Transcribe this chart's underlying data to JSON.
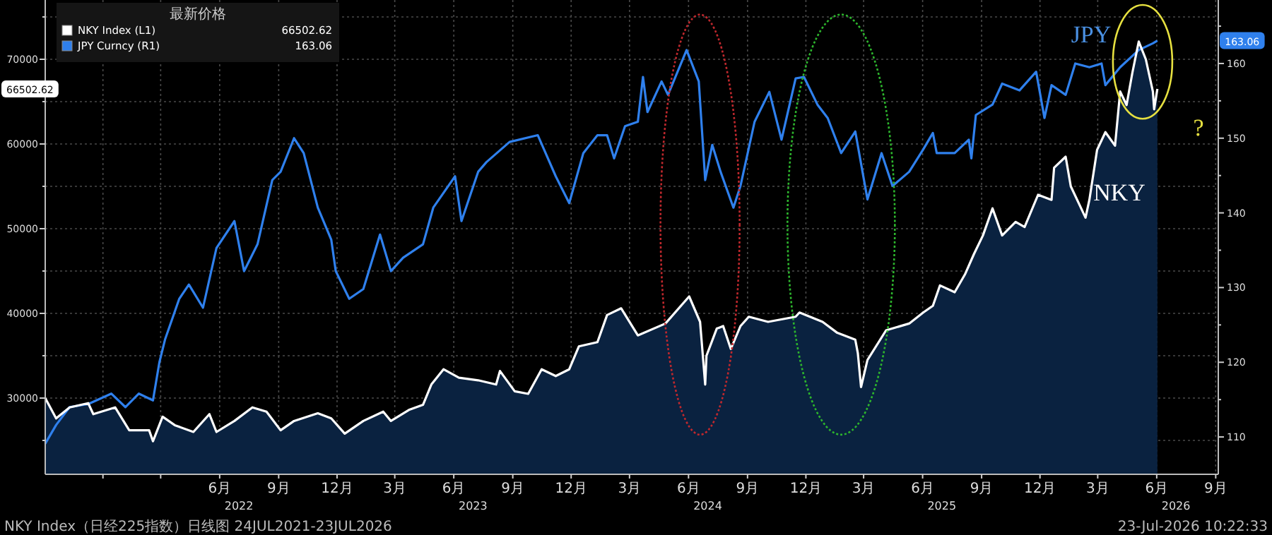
{
  "chart_data": {
    "type": "line",
    "legend_title": "最新价格",
    "legend": "top left",
    "grid": true,
    "xlim": [
      "2021-09-02",
      "2026-09-05"
    ],
    "ylim": [
      21000,
      77000
    ],
    "y2lim": [
      105,
      168.5
    ],
    "xticks": [
      {
        "value": "2021-12-01",
        "label": null
      },
      {
        "value": "2022-03-01",
        "label": null
      },
      {
        "value": "2022-06-01",
        "label": "6月"
      },
      {
        "value": "2022-09-01",
        "label": "9月"
      },
      {
        "value": "2022-12-01",
        "label": "12月"
      },
      {
        "value": "2023-03-01",
        "label": "3月"
      },
      {
        "value": "2023-06-01",
        "label": "6月"
      },
      {
        "value": "2023-09-01",
        "label": "9月"
      },
      {
        "value": "2023-12-01",
        "label": "12月"
      },
      {
        "value": "2024-03-01",
        "label": "3月"
      },
      {
        "value": "2024-06-01",
        "label": "6月"
      },
      {
        "value": "2024-09-01",
        "label": "9月"
      },
      {
        "value": "2024-12-01",
        "label": "12月"
      },
      {
        "value": "2025-03-01",
        "label": "3月"
      },
      {
        "value": "2025-06-01",
        "label": "6月"
      },
      {
        "value": "2025-09-01",
        "label": "9月"
      },
      {
        "value": "2025-12-01",
        "label": "12月"
      },
      {
        "value": "2026-03-01",
        "label": "3月"
      },
      {
        "value": "2026-06-01",
        "label": "6月"
      },
      {
        "value": "2026-09-01",
        "label": "9月"
      }
    ],
    "x2lim": [
      "2021-09-02",
      "2026-09-05"
    ],
    "x2ticks": [
      {
        "value": "2022-07-01",
        "label": "2022"
      },
      {
        "value": "2023-07-01",
        "label": "2023"
      },
      {
        "value": "2024-07-01",
        "label": "2024"
      },
      {
        "value": "2025-07-01",
        "label": "2025"
      },
      {
        "value": "2026-07-01",
        "label": "2026"
      }
    ],
    "yticks": [
      {
        "value": 25000,
        "label": null
      },
      30000,
      {
        "value": 35000,
        "label": null
      },
      40000,
      {
        "value": 45000,
        "label": null
      },
      50000,
      {
        "value": 55000,
        "label": null
      },
      60000,
      {
        "value": 65000,
        "label": null
      },
      70000,
      {
        "value": 75000,
        "label": null
      }
    ],
    "y2ticks": [
      110,
      {
        "value": 115,
        "label": null
      },
      120,
      {
        "value": 125,
        "label": null
      },
      130,
      {
        "value": 135,
        "label": null
      },
      140,
      {
        "value": 145,
        "label": null
      },
      150,
      {
        "value": 155,
        "label": null
      },
      160,
      {
        "value": 165,
        "label": null
      }
    ],
    "series": [
      {
        "name": "NKY Index (L1)",
        "type": "area",
        "color": "#ffffff",
        "x": [
          "2021-09-02",
          "2021-09-19",
          "2021-10-10",
          "2021-11-08",
          "2021-11-16",
          "2021-12-20",
          "2022-01-11",
          "2022-02-11",
          "2022-02-17",
          "2022-03-04",
          "2022-03-23",
          "2022-04-21",
          "2022-05-16",
          "2022-05-27",
          "2022-06-24",
          "2022-07-22",
          "2022-08-13",
          "2022-09-04",
          "2022-09-25",
          "2022-11-01",
          "2022-11-22",
          "2022-12-13",
          "2023-01-11",
          "2023-02-11",
          "2023-02-23",
          "2023-03-23",
          "2023-04-14",
          "2023-04-27",
          "2023-05-16",
          "2023-06-09",
          "2023-07-09",
          "2023-08-06",
          "2023-08-12",
          "2023-09-04",
          "2023-09-25",
          "2023-10-16",
          "2023-11-07",
          "2023-11-28",
          "2023-12-13",
          "2024-01-11",
          "2024-01-26",
          "2024-02-17",
          "2024-03-14",
          "2024-04-26",
          "2024-06-02",
          "2024-06-19",
          "2024-06-27",
          "2024-06-29",
          "2024-07-15",
          "2024-07-25",
          "2024-08-06",
          "2024-08-21",
          "2024-09-03",
          "2024-10-03",
          "2024-11-15",
          "2024-11-21",
          "2024-12-27",
          "2025-01-19",
          "2025-02-16",
          "2025-02-20",
          "2025-02-25",
          "2025-03-07",
          "2025-04-05",
          "2025-05-11",
          "2025-06-02",
          "2025-06-17",
          "2025-06-28",
          "2025-07-21",
          "2025-08-06",
          "2025-08-20",
          "2025-09-03",
          "2025-09-18",
          "2025-10-03",
          "2025-10-24",
          "2025-11-07",
          "2025-11-28",
          "2025-12-19",
          "2025-12-23",
          "2026-01-10",
          "2026-01-18",
          "2026-02-10",
          "2026-02-16",
          "2026-02-28",
          "2026-03-13",
          "2026-03-28",
          "2026-04-05",
          "2026-04-15",
          "2026-04-24",
          "2026-05-04",
          "2026-05-15",
          "2026-05-26",
          "2026-05-28",
          "2026-06-02"
        ],
        "values": [
          30000,
          27600,
          28900,
          29400,
          28100,
          28900,
          26200,
          26200,
          24900,
          27800,
          26800,
          26000,
          28100,
          26000,
          27300,
          28900,
          28400,
          26200,
          27300,
          28200,
          27600,
          25800,
          27300,
          28400,
          27300,
          28600,
          29200,
          31600,
          33400,
          32400,
          32100,
          31600,
          33200,
          30800,
          30500,
          33400,
          32600,
          33400,
          36100,
          36600,
          39800,
          40600,
          37400,
          38800,
          42000,
          39000,
          31600,
          35000,
          38200,
          38500,
          35800,
          38500,
          39600,
          39000,
          39600,
          40100,
          39000,
          37700,
          36900,
          35300,
          31300,
          34500,
          38000,
          38800,
          40100,
          40900,
          43300,
          42500,
          44600,
          47000,
          49200,
          52400,
          49200,
          50800,
          50200,
          54000,
          53400,
          57200,
          58500,
          55000,
          51300,
          53400,
          59300,
          61400,
          59800,
          66200,
          64600,
          68400,
          72100,
          70000,
          66200,
          64100,
          66502.62
        ]
      },
      {
        "name": "JPY Curncy (R1)",
        "type": "line",
        "axis": "y2",
        "color": "#2f80ed",
        "x": [
          "2021-09-02",
          "2021-09-19",
          "2021-10-10",
          "2021-11-08",
          "2021-12-14",
          "2022-01-05",
          "2022-01-26",
          "2022-02-17",
          "2022-02-27",
          "2022-03-08",
          "2022-03-30",
          "2022-04-14",
          "2022-05-06",
          "2022-05-27",
          "2022-06-24",
          "2022-07-09",
          "2022-07-30",
          "2022-08-22",
          "2022-09-04",
          "2022-09-25",
          "2022-10-10",
          "2022-11-01",
          "2022-11-22",
          "2022-11-29",
          "2022-12-20",
          "2023-01-11",
          "2023-02-06",
          "2023-02-23",
          "2023-03-14",
          "2023-04-14",
          "2023-04-30",
          "2023-06-03",
          "2023-06-13",
          "2023-07-09",
          "2023-07-22",
          "2023-08-27",
          "2023-10-10",
          "2023-11-07",
          "2023-11-28",
          "2023-12-20",
          "2024-01-11",
          "2024-01-26",
          "2024-02-06",
          "2024-02-23",
          "2024-03-14",
          "2024-03-22",
          "2024-03-29",
          "2024-04-20",
          "2024-04-30",
          "2024-05-29",
          "2024-06-17",
          "2024-06-27",
          "2024-07-08",
          "2024-07-21",
          "2024-08-10",
          "2024-08-21",
          "2024-09-12",
          "2024-10-05",
          "2024-10-24",
          "2024-11-15",
          "2024-11-28",
          "2024-12-19",
          "2025-01-04",
          "2025-01-25",
          "2025-02-16",
          "2025-03-07",
          "2025-03-29",
          "2025-04-15",
          "2025-05-11",
          "2025-06-02",
          "2025-06-17",
          "2025-06-23",
          "2025-07-21",
          "2025-08-12",
          "2025-08-16",
          "2025-08-23",
          "2025-09-18",
          "2025-10-03",
          "2025-10-30",
          "2025-11-25",
          "2025-12-08",
          "2025-12-19",
          "2026-01-10",
          "2026-01-25",
          "2026-02-16",
          "2026-03-07",
          "2026-03-13",
          "2026-04-05",
          "2026-05-04",
          "2026-05-26",
          "2026-06-02"
        ],
        "values": [
          109.1,
          111.6,
          114.0,
          114.4,
          115.8,
          114.0,
          115.8,
          114.9,
          120.0,
          123.1,
          128.5,
          130.4,
          127.3,
          135.3,
          138.9,
          132.2,
          135.8,
          144.4,
          145.5,
          150.0,
          148.0,
          140.7,
          136.4,
          132.2,
          128.5,
          129.8,
          137.1,
          132.2,
          134.0,
          135.8,
          140.7,
          144.9,
          138.9,
          145.5,
          146.8,
          149.5,
          150.4,
          144.9,
          141.3,
          148.0,
          150.4,
          150.4,
          147.3,
          151.6,
          152.2,
          158.2,
          153.5,
          157.6,
          155.8,
          161.8,
          157.6,
          144.4,
          149.1,
          145.5,
          140.7,
          143.6,
          152.2,
          156.2,
          149.8,
          158.0,
          158.2,
          154.5,
          152.7,
          148.0,
          150.9,
          141.8,
          148.0,
          143.6,
          145.5,
          148.5,
          150.7,
          148.0,
          148.0,
          149.8,
          147.3,
          153.1,
          154.5,
          157.3,
          156.4,
          158.9,
          152.7,
          157.1,
          155.8,
          160.0,
          159.5,
          160.0,
          157.1,
          159.5,
          161.8,
          162.7,
          163.06
        ]
      }
    ],
    "annotations": [
      "JPY",
      "NKY",
      "?",
      "66502.62",
      "163.06",
      "NKY Index（日经225指数）日线图 24JUL2021-23JUL2026",
      "23-Jul-2026 10:22:33"
    ]
  }
}
